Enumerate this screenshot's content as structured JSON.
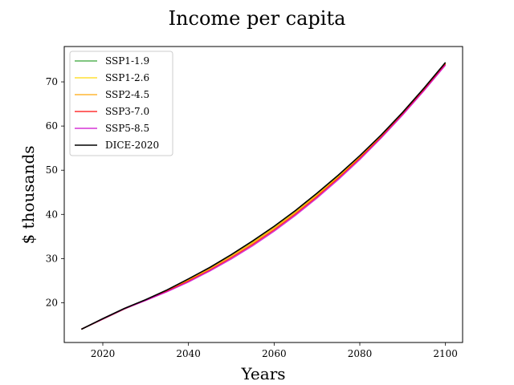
{
  "chart_data": {
    "type": "line",
    "title": "Income per capita",
    "xlabel": "Years",
    "ylabel": "$ thousands",
    "xlim": [
      2011,
      2104
    ],
    "ylim": [
      11,
      78
    ],
    "xticks": [
      2020,
      2040,
      2060,
      2080,
      2100
    ],
    "yticks": [
      20,
      30,
      40,
      50,
      60,
      70
    ],
    "grid": false,
    "legend_position": "top-left",
    "x": [
      2015,
      2020,
      2025,
      2030,
      2035,
      2040,
      2045,
      2050,
      2055,
      2060,
      2065,
      2070,
      2075,
      2080,
      2085,
      2090,
      2095,
      2100
    ],
    "series": [
      {
        "name": "SSP1-1.9",
        "color": "#2ca02c",
        "values": [
          14.0,
          16.3,
          18.6,
          20.6,
          22.8,
          25.2,
          27.8,
          30.7,
          33.7,
          37.0,
          40.6,
          44.5,
          48.6,
          53.1,
          57.8,
          63.0,
          68.5,
          74.2
        ]
      },
      {
        "name": "SSP1-2.6",
        "color": "#ffd700",
        "values": [
          14.0,
          16.3,
          18.6,
          20.6,
          22.8,
          25.2,
          27.8,
          30.7,
          33.7,
          37.0,
          40.6,
          44.5,
          48.6,
          53.1,
          57.8,
          63.0,
          68.5,
          74.2
        ]
      },
      {
        "name": "SSP2-4.5",
        "color": "#ffa500",
        "values": [
          14.0,
          16.3,
          18.6,
          20.6,
          22.7,
          25.1,
          27.7,
          30.5,
          33.5,
          36.8,
          40.4,
          44.3,
          48.4,
          52.9,
          57.7,
          62.9,
          68.4,
          74.2
        ]
      },
      {
        "name": "SSP3-7.0",
        "color": "#ff0000",
        "values": [
          14.0,
          16.3,
          18.6,
          20.6,
          22.6,
          24.9,
          27.4,
          30.2,
          33.2,
          36.5,
          40.1,
          44.0,
          48.2,
          52.7,
          57.5,
          62.7,
          68.2,
          74.0
        ]
      },
      {
        "name": "SSP5-8.5",
        "color": "#cc00cc",
        "values": [
          14.0,
          16.3,
          18.6,
          20.5,
          22.5,
          24.7,
          27.2,
          29.9,
          32.9,
          36.2,
          39.8,
          43.7,
          47.9,
          52.4,
          57.3,
          62.5,
          68.0,
          73.8
        ]
      },
      {
        "name": "DICE-2020",
        "color": "#000000",
        "values": [
          14.0,
          16.4,
          18.7,
          20.7,
          22.9,
          25.4,
          28.0,
          30.9,
          34.0,
          37.3,
          40.9,
          44.8,
          48.9,
          53.3,
          58.0,
          63.1,
          68.6,
          74.4
        ]
      }
    ]
  }
}
